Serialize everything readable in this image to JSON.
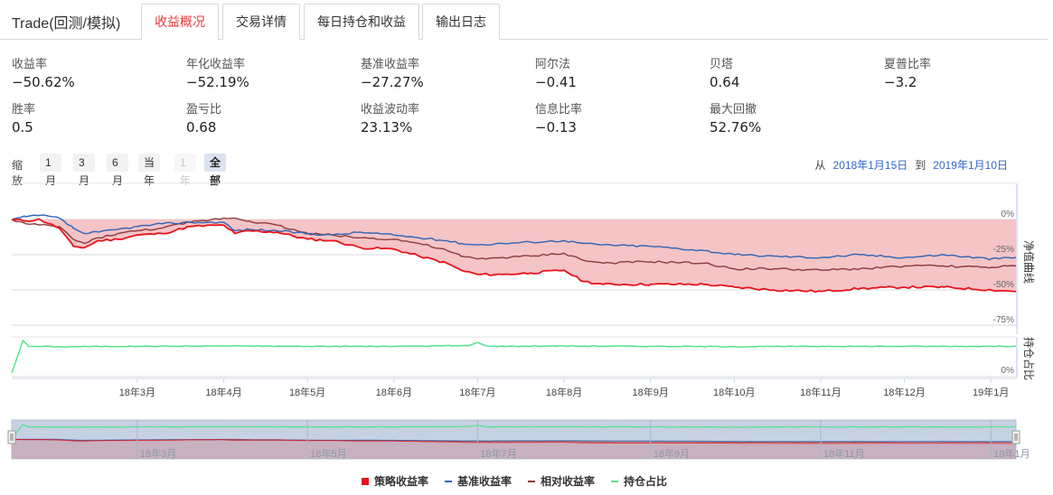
{
  "app": {
    "title": "Trade(回测/模拟)"
  },
  "tabs": [
    {
      "label": "收益概况",
      "active": true
    },
    {
      "label": "交易详情",
      "active": false
    },
    {
      "label": "每日持仓和收益",
      "active": false
    },
    {
      "label": "输出日志",
      "active": false
    }
  ],
  "metrics": [
    {
      "label": "收益率",
      "value": "−50.62%"
    },
    {
      "label": "年化收益率",
      "value": "−52.19%"
    },
    {
      "label": "基准收益率",
      "value": "−27.27%"
    },
    {
      "label": "阿尔法",
      "value": "−0.41"
    },
    {
      "label": "贝塔",
      "value": "0.64"
    },
    {
      "label": "夏普比率",
      "value": "−3.2"
    },
    {
      "label": "胜率",
      "value": "0.5"
    },
    {
      "label": "盈亏比",
      "value": "0.68"
    },
    {
      "label": "收益波动率",
      "value": "23.13%"
    },
    {
      "label": "信息比率",
      "value": "−0.13"
    },
    {
      "label": "最大回撤",
      "value": "52.76%"
    }
  ],
  "zoom": {
    "label": "缩放",
    "buttons": [
      {
        "label": "1月",
        "state": "normal"
      },
      {
        "label": "3月",
        "state": "normal"
      },
      {
        "label": "6月",
        "state": "normal"
      },
      {
        "label": "当年",
        "state": "normal"
      },
      {
        "label": "1年",
        "state": "disabled"
      },
      {
        "label": "全部",
        "state": "active"
      }
    ]
  },
  "range": {
    "from_label": "从",
    "from": "2018年1月15日",
    "to_label": "到",
    "to": "2019年1月10日"
  },
  "legend": [
    {
      "label": "策略收益率",
      "color": "#e8141c",
      "shape": "square"
    },
    {
      "label": "基准收益率",
      "color": "#2f63b6",
      "shape": "line"
    },
    {
      "label": "相对收益率",
      "color": "#8c3b3b",
      "shape": "line"
    },
    {
      "label": "持仓占比",
      "color": "#54e38e",
      "shape": "line"
    }
  ],
  "chart_data": {
    "type": "line",
    "start_date": "2018-01-15",
    "end_date": "2019-01-10",
    "panels": [
      {
        "axis_title": "净值曲线",
        "unit": "%",
        "ylim": [
          -75,
          0
        ],
        "yticks": [
          "0%",
          "-25%",
          "-50%",
          "-75%"
        ]
      },
      {
        "axis_title": "持仓占比",
        "unit": "%",
        "ylim": [
          0,
          100
        ],
        "yticks": [
          "0%"
        ]
      }
    ],
    "x_tick_labels": [
      "18年3月",
      "18年4月",
      "18年5月",
      "18年6月",
      "18年7月",
      "18年8月",
      "18年9月",
      "18年10月",
      "18年11月",
      "18年12月",
      "19年1月"
    ],
    "x_tick_dates": [
      "2018-03-01",
      "2018-04-01",
      "2018-05-01",
      "2018-06-01",
      "2018-07-01",
      "2018-08-01",
      "2018-09-01",
      "2018-10-01",
      "2018-11-01",
      "2018-12-01",
      "2019-01-01"
    ],
    "navigator_tick_labels": [
      "18年3月",
      "18年5月",
      "18年7月",
      "18年9月",
      "18年11月",
      "19年1月"
    ],
    "navigator_tick_dates": [
      "2018-03-01",
      "2018-05-01",
      "2018-07-01",
      "2018-09-01",
      "2018-11-01",
      "2019-01-01"
    ],
    "series": [
      {
        "name": "策略收益率",
        "color": "#e8141c",
        "area_fill": "#f4c4c6",
        "points": [
          [
            "2018-01-15",
            0
          ],
          [
            "2018-01-20",
            -1
          ],
          [
            "2018-01-25",
            0
          ],
          [
            "2018-02-01",
            -6
          ],
          [
            "2018-02-06",
            -19
          ],
          [
            "2018-02-10",
            -20
          ],
          [
            "2018-02-15",
            -15
          ],
          [
            "2018-02-22",
            -14
          ],
          [
            "2018-03-01",
            -11
          ],
          [
            "2018-03-10",
            -10
          ],
          [
            "2018-03-20",
            -5
          ],
          [
            "2018-04-01",
            -4
          ],
          [
            "2018-04-05",
            -10
          ],
          [
            "2018-04-10",
            -8
          ],
          [
            "2018-04-20",
            -9
          ],
          [
            "2018-05-01",
            -14
          ],
          [
            "2018-05-10",
            -15
          ],
          [
            "2018-05-20",
            -20
          ],
          [
            "2018-06-01",
            -21
          ],
          [
            "2018-06-10",
            -26
          ],
          [
            "2018-06-20",
            -31
          ],
          [
            "2018-06-25",
            -36
          ],
          [
            "2018-07-01",
            -39
          ],
          [
            "2018-07-10",
            -39
          ],
          [
            "2018-07-20",
            -38
          ],
          [
            "2018-08-01",
            -36
          ],
          [
            "2018-08-08",
            -44
          ],
          [
            "2018-08-15",
            -46
          ],
          [
            "2018-09-01",
            -46
          ],
          [
            "2018-09-20",
            -46
          ],
          [
            "2018-10-01",
            -48
          ],
          [
            "2018-10-15",
            -50
          ],
          [
            "2018-11-01",
            -51
          ],
          [
            "2018-11-15",
            -49
          ],
          [
            "2018-12-01",
            -48
          ],
          [
            "2018-12-15",
            -48
          ],
          [
            "2019-01-01",
            -50
          ],
          [
            "2019-01-10",
            -51
          ]
        ]
      },
      {
        "name": "基准收益率",
        "color": "#2f63b6",
        "points": [
          [
            "2018-01-15",
            0
          ],
          [
            "2018-01-20",
            2
          ],
          [
            "2018-01-25",
            3
          ],
          [
            "2018-02-01",
            1
          ],
          [
            "2018-02-06",
            -6
          ],
          [
            "2018-02-10",
            -10
          ],
          [
            "2018-02-15",
            -9
          ],
          [
            "2018-02-22",
            -7
          ],
          [
            "2018-03-01",
            -5
          ],
          [
            "2018-03-10",
            -3
          ],
          [
            "2018-03-20",
            -2
          ],
          [
            "2018-04-01",
            -2
          ],
          [
            "2018-04-05",
            -8
          ],
          [
            "2018-04-10",
            -7
          ],
          [
            "2018-04-20",
            -8
          ],
          [
            "2018-05-01",
            -10
          ],
          [
            "2018-05-10",
            -11
          ],
          [
            "2018-05-20",
            -9
          ],
          [
            "2018-06-01",
            -11
          ],
          [
            "2018-06-10",
            -13
          ],
          [
            "2018-06-20",
            -15
          ],
          [
            "2018-06-25",
            -17
          ],
          [
            "2018-07-01",
            -18
          ],
          [
            "2018-07-10",
            -17
          ],
          [
            "2018-07-20",
            -16
          ],
          [
            "2018-08-01",
            -15
          ],
          [
            "2018-08-08",
            -17
          ],
          [
            "2018-08-15",
            -18
          ],
          [
            "2018-09-01",
            -19
          ],
          [
            "2018-09-20",
            -22
          ],
          [
            "2018-10-01",
            -25
          ],
          [
            "2018-10-15",
            -26
          ],
          [
            "2018-11-01",
            -27
          ],
          [
            "2018-11-15",
            -25
          ],
          [
            "2018-12-01",
            -27
          ],
          [
            "2018-12-15",
            -25
          ],
          [
            "2019-01-01",
            -28
          ],
          [
            "2019-01-10",
            -27
          ]
        ]
      },
      {
        "name": "相对收益率",
        "color": "#8c3b3b",
        "points": [
          [
            "2018-01-15",
            0
          ],
          [
            "2018-01-20",
            -3
          ],
          [
            "2018-01-25",
            -4
          ],
          [
            "2018-02-01",
            -5
          ],
          [
            "2018-02-06",
            -14
          ],
          [
            "2018-02-10",
            -17
          ],
          [
            "2018-02-15",
            -13
          ],
          [
            "2018-02-22",
            -10
          ],
          [
            "2018-03-01",
            -8
          ],
          [
            "2018-03-10",
            -6
          ],
          [
            "2018-03-20",
            -2
          ],
          [
            "2018-04-01",
            1
          ],
          [
            "2018-04-05",
            1
          ],
          [
            "2018-04-10",
            -1
          ],
          [
            "2018-04-20",
            -4
          ],
          [
            "2018-05-01",
            -10
          ],
          [
            "2018-05-10",
            -11
          ],
          [
            "2018-05-20",
            -13
          ],
          [
            "2018-06-01",
            -14
          ],
          [
            "2018-06-10",
            -17
          ],
          [
            "2018-06-20",
            -22
          ],
          [
            "2018-06-25",
            -26
          ],
          [
            "2018-07-01",
            -28
          ],
          [
            "2018-07-10",
            -27
          ],
          [
            "2018-07-20",
            -26
          ],
          [
            "2018-08-01",
            -24
          ],
          [
            "2018-08-08",
            -29
          ],
          [
            "2018-08-15",
            -31
          ],
          [
            "2018-09-01",
            -30
          ],
          [
            "2018-09-20",
            -31
          ],
          [
            "2018-10-01",
            -35
          ],
          [
            "2018-10-15",
            -35
          ],
          [
            "2018-11-01",
            -36
          ],
          [
            "2018-11-15",
            -35
          ],
          [
            "2018-12-01",
            -33
          ],
          [
            "2018-12-15",
            -33
          ],
          [
            "2019-01-01",
            -34
          ],
          [
            "2019-01-10",
            -33
          ]
        ]
      },
      {
        "name": "持仓占比",
        "color": "#54e38e",
        "panel": 2,
        "points": [
          [
            "2018-01-15",
            10
          ],
          [
            "2018-01-19",
            95
          ],
          [
            "2018-01-21",
            80
          ],
          [
            "2018-02-01",
            79
          ],
          [
            "2018-03-01",
            80
          ],
          [
            "2018-04-01",
            81
          ],
          [
            "2018-05-01",
            80
          ],
          [
            "2018-06-01",
            80
          ],
          [
            "2018-06-28",
            82
          ],
          [
            "2018-07-01",
            90
          ],
          [
            "2018-07-05",
            80
          ],
          [
            "2018-08-01",
            81
          ],
          [
            "2018-09-01",
            80
          ],
          [
            "2018-10-01",
            79
          ],
          [
            "2018-11-01",
            80
          ],
          [
            "2018-12-01",
            80
          ],
          [
            "2019-01-01",
            80
          ],
          [
            "2019-01-10",
            81
          ]
        ]
      }
    ]
  }
}
